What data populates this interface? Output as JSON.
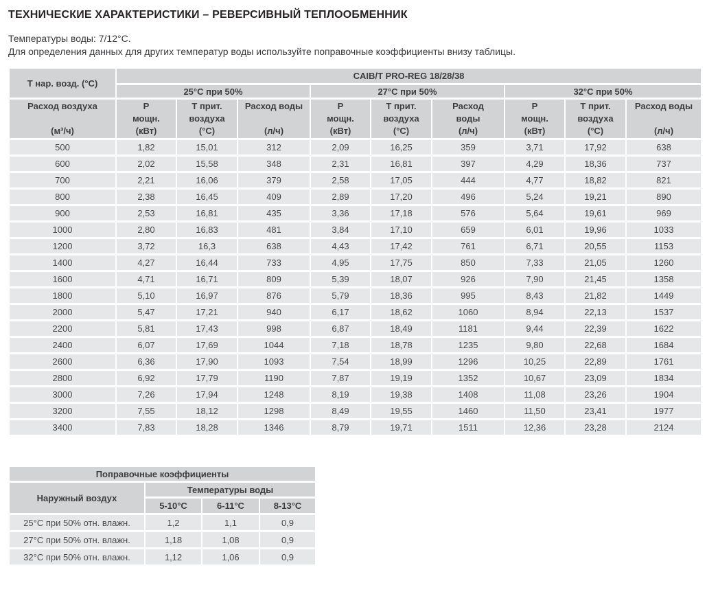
{
  "page": {
    "title": "ТЕХНИЧЕСКИЕ ХАРАКТЕРИСТИКИ – РЕВЕРСИВНЫЙ ТЕПЛООБМЕННИК",
    "subtitle_line1": "Температуры воды: 7/12°С.",
    "subtitle_line2": "Для определения данных для других температур воды используйте поправочные коэффициенты внизу таблицы."
  },
  "colors": {
    "header_bg": "#d1d3d4",
    "cell_bg": "#e6e7e8",
    "header_text": "#3d3d3f",
    "cell_text": "#48484a"
  },
  "main_table": {
    "corner_header": "Т нар. возд. (°С)",
    "model_header": "CAIB/T PRO-REG 18/28/38",
    "groups": [
      "25°С при 50%",
      "27°С при 50%",
      "32°С при 50%"
    ],
    "column_headers": [
      {
        "lines": [
          "Расход воздуха",
          "",
          "(м³/ч)"
        ]
      },
      {
        "lines": [
          "Р",
          "мощн.",
          "(кВт)"
        ]
      },
      {
        "lines": [
          "Т прит.",
          "воздуха",
          "(°С)"
        ]
      },
      {
        "lines": [
          "Расход воды",
          "",
          "(л/ч)"
        ]
      },
      {
        "lines": [
          "Р",
          "мощн.",
          "(кВт)"
        ]
      },
      {
        "lines": [
          "Т прит.",
          "воздуха",
          "(°С)"
        ]
      },
      {
        "lines": [
          "Расход",
          "воды",
          "(л/ч)"
        ]
      },
      {
        "lines": [
          "Р",
          "мощн.",
          "(кВт)"
        ]
      },
      {
        "lines": [
          "Т прит.",
          "воздуха",
          "(°С)"
        ]
      },
      {
        "lines": [
          "Расход воды",
          "",
          "(л/ч)"
        ]
      }
    ],
    "rows": [
      [
        "500",
        "1,82",
        "15,01",
        "312",
        "2,09",
        "16,25",
        "359",
        "3,71",
        "17,92",
        "638"
      ],
      [
        "600",
        "2,02",
        "15,58",
        "348",
        "2,31",
        "16,81",
        "397",
        "4,29",
        "18,36",
        "737"
      ],
      [
        "700",
        "2,21",
        "16,06",
        "379",
        "2,58",
        "17,05",
        "444",
        "4,77",
        "18,82",
        "821"
      ],
      [
        "800",
        "2,38",
        "16,45",
        "409",
        "2,89",
        "17,20",
        "496",
        "5,24",
        "19,21",
        "890"
      ],
      [
        "900",
        "2,53",
        "16,81",
        "435",
        "3,36",
        "17,18",
        "576",
        "5,64",
        "19,61",
        "969"
      ],
      [
        "1000",
        "2,80",
        "16,83",
        "481",
        "3,84",
        "17,10",
        "659",
        "6,01",
        "19,96",
        "1033"
      ],
      [
        "1200",
        "3,72",
        "16,3",
        "638",
        "4,43",
        "17,42",
        "761",
        "6,71",
        "20,55",
        "1153"
      ],
      [
        "1400",
        "4,27",
        "16,44",
        "733",
        "4,95",
        "17,75",
        "850",
        "7,33",
        "21,05",
        "1260"
      ],
      [
        "1600",
        "4,71",
        "16,71",
        "809",
        "5,39",
        "18,07",
        "926",
        "7,90",
        "21,45",
        "1358"
      ],
      [
        "1800",
        "5,10",
        "16,97",
        "876",
        "5,79",
        "18,36",
        "995",
        "8,43",
        "21,82",
        "1449"
      ],
      [
        "2000",
        "5,47",
        "17,21",
        "940",
        "6,17",
        "18,62",
        "1060",
        "8,94",
        "22,13",
        "1537"
      ],
      [
        "2200",
        "5,81",
        "17,43",
        "998",
        "6,87",
        "18,49",
        "1181",
        "9,44",
        "22,39",
        "1622"
      ],
      [
        "2400",
        "6,07",
        "17,69",
        "1044",
        "7,18",
        "18,78",
        "1235",
        "9,80",
        "22,68",
        "1684"
      ],
      [
        "2600",
        "6,36",
        "17,90",
        "1093",
        "7,54",
        "18,99",
        "1296",
        "10,25",
        "22,89",
        "1761"
      ],
      [
        "2800",
        "6,92",
        "17,79",
        "1190",
        "7,87",
        "19,19",
        "1352",
        "10,67",
        "23,09",
        "1834"
      ],
      [
        "3000",
        "7,26",
        "17,94",
        "1248",
        "8,19",
        "19,38",
        "1408",
        "11,08",
        "23,26",
        "1904"
      ],
      [
        "3200",
        "7,55",
        "18,12",
        "1298",
        "8,49",
        "19,55",
        "1460",
        "11,50",
        "23,41",
        "1977"
      ],
      [
        "3400",
        "7,83",
        "18,28",
        "1346",
        "8,79",
        "19,71",
        "1511",
        "12,36",
        "23,28",
        "2124"
      ]
    ]
  },
  "correction_table": {
    "title": "Поправочные коэффициенты",
    "row_header": "Наружный воздух",
    "col_group": "Температуры воды",
    "col_headers": [
      "5-10°С",
      "6-11°С",
      "8-13°С"
    ],
    "rows": [
      {
        "label": "25°С при 50% отн. влажн.",
        "values": [
          "1,2",
          "1,1",
          "0,9"
        ]
      },
      {
        "label": "27°С при 50% отн. влажн.",
        "values": [
          "1,18",
          "1,08",
          "0,9"
        ]
      },
      {
        "label": "32°С при 50% отн. влажн.",
        "values": [
          "1,12",
          "1,06",
          "0,9"
        ]
      }
    ]
  }
}
